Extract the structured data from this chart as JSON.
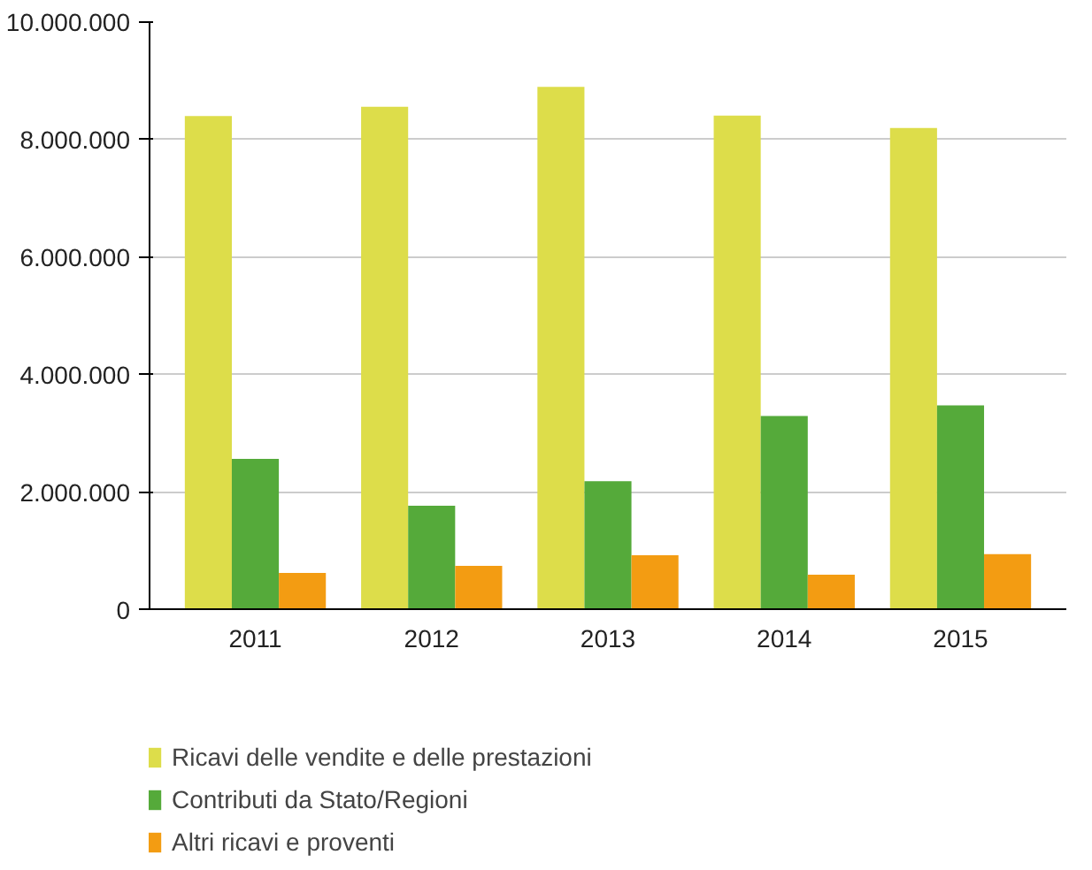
{
  "chart_data": {
    "type": "bar",
    "categories": [
      "2011",
      "2012",
      "2013",
      "2014",
      "2015"
    ],
    "series": [
      {
        "name": "Ricavi delle vendite e delle prestazioni",
        "color": "#dddd4a",
        "values": [
          8400000,
          8560000,
          8900000,
          8410000,
          8200000
        ]
      },
      {
        "name": "Contributi da Stato/Regioni",
        "color": "#55aa3a",
        "values": [
          2570000,
          1770000,
          2190000,
          3300000,
          3480000
        ]
      },
      {
        "name": "Altri ricavi e proventi",
        "color": "#f39c12",
        "values": [
          630000,
          750000,
          930000,
          600000,
          950000
        ]
      }
    ],
    "ylim": [
      0,
      10000000
    ],
    "yticks": [
      {
        "value": 0,
        "label": "0"
      },
      {
        "value": 2000000,
        "label": "2.000.000"
      },
      {
        "value": 4000000,
        "label": "4.000.000"
      },
      {
        "value": 6000000,
        "label": "6.000.000"
      },
      {
        "value": 8000000,
        "label": "8.000.000"
      },
      {
        "value": 10000000,
        "label": "10.000.000"
      }
    ],
    "grid": "y",
    "legend": "bottom"
  }
}
